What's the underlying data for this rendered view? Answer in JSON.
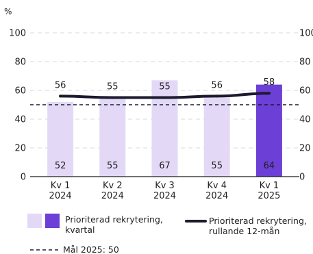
{
  "chart_data": {
    "type": "bar",
    "title": "",
    "ylabel": "%",
    "ylim": [
      0,
      100
    ],
    "yticks": [
      0,
      20,
      40,
      60,
      80,
      100
    ],
    "categories": [
      {
        "line1": "Kv 1",
        "line2": "2024"
      },
      {
        "line1": "Kv 2",
        "line2": "2024"
      },
      {
        "line1": "Kv 3",
        "line2": "2024"
      },
      {
        "line1": "Kv 4",
        "line2": "2024"
      },
      {
        "line1": "Kv 1",
        "line2": "2025"
      }
    ],
    "series": [
      {
        "name": "Prioriterad rekrytering, kvartal",
        "type": "bar",
        "values": [
          52,
          55,
          67,
          55,
          64
        ],
        "color_light": "#e3d9f7",
        "color_highlight": "#6c3fd6",
        "highlight_index": 4,
        "legend_lines": [
          "Prioriterad rekrytering,",
          "kvartal"
        ]
      },
      {
        "name": "Prioriterad rekrytering, rullande 12-mån",
        "type": "line",
        "values": [
          56,
          55,
          55,
          56,
          58
        ],
        "color": "#1b1a2e",
        "legend_lines": [
          "Prioriterad rekrytering,",
          "rullande 12-mån"
        ]
      }
    ],
    "reference_line": {
      "label": "Mål 2025: 50",
      "value": 50,
      "style": "dashed",
      "color": "#1b1a2e"
    },
    "grid": true,
    "grid_color": "#d8d8de",
    "bar_label_color_light": "#2b2b2b",
    "bar_label_color_dark": "#ffffff"
  }
}
